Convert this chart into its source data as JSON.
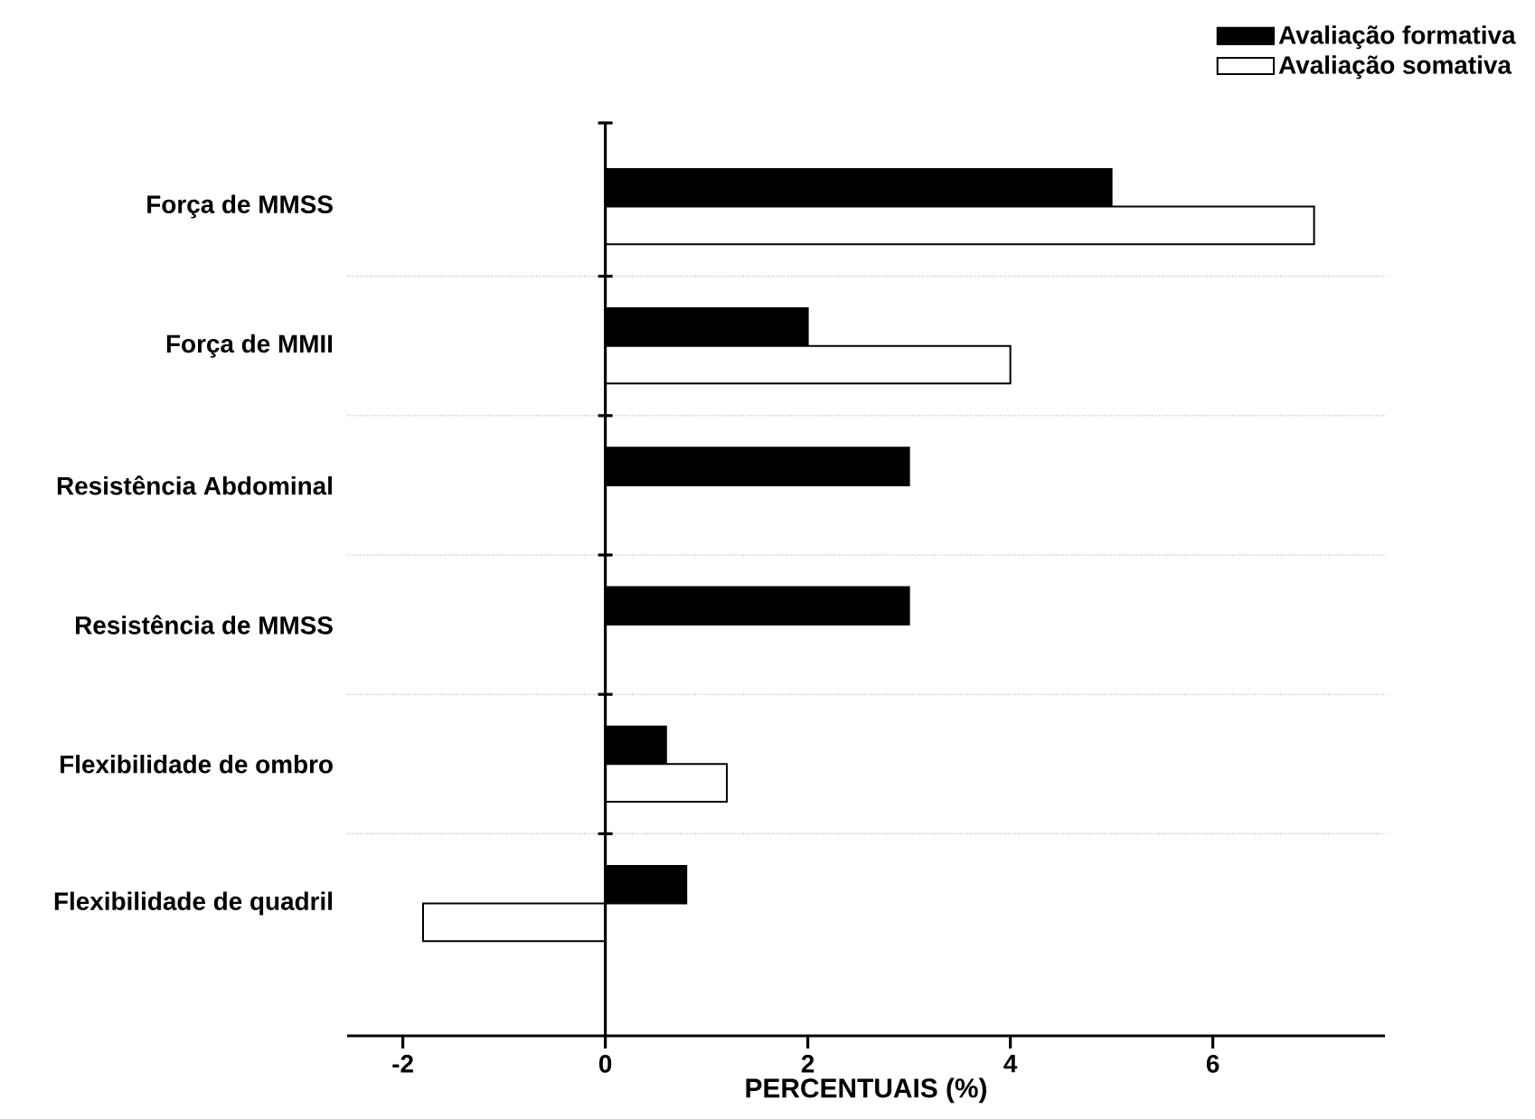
{
  "chart_data": {
    "type": "bar",
    "orientation": "horizontal",
    "xlabel": "PERCENTUAIS (%)",
    "categories": [
      "Força de MMSS",
      "Força de MMII",
      "Resistência Abdominal",
      "Resistência de MMSS",
      "Flexibilidade de ombro",
      "Flexibilidade de quadril"
    ],
    "series": [
      {
        "name": "Avaliação formativa",
        "color": "#000000",
        "values": [
          5,
          2,
          3,
          3,
          0.6,
          0.8
        ]
      },
      {
        "name": "Avaliação somativa",
        "color": "#ffffff",
        "values": [
          7,
          4,
          null,
          null,
          1.2,
          -1.8
        ]
      }
    ],
    "xlim": [
      -2.55,
      7.7
    ],
    "xticks": [
      -2,
      0,
      2,
      4,
      6
    ],
    "grid": "y",
    "legend": "top right"
  }
}
